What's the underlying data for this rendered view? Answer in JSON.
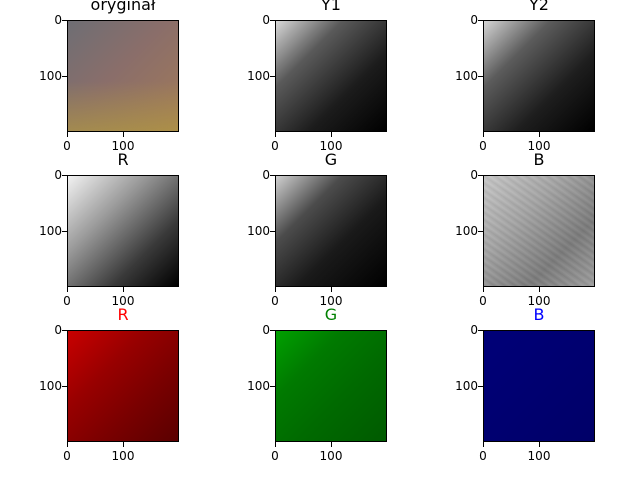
{
  "panels": [
    {
      "title": "oryginał",
      "title_color": "#000000",
      "image": "original-composite"
    },
    {
      "title": "Y1",
      "title_color": "#000000",
      "image": "luminance-grayscale"
    },
    {
      "title": "Y2",
      "title_color": "#000000",
      "image": "luminance-grayscale"
    },
    {
      "title": "R",
      "title_color": "#000000",
      "image": "red-channel-grayscale"
    },
    {
      "title": "G",
      "title_color": "#000000",
      "image": "green-channel-grayscale"
    },
    {
      "title": "B",
      "title_color": "#000000",
      "image": "blue-channel-grayscale-noisy"
    },
    {
      "title": "R",
      "title_color": "#ff0000",
      "image": "red-channel-tinted"
    },
    {
      "title": "G",
      "title_color": "#008000",
      "image": "green-channel-tinted"
    },
    {
      "title": "B",
      "title_color": "#0000ff",
      "image": "blue-channel-tinted"
    }
  ],
  "axis": {
    "y_ticks": [
      "0",
      "100"
    ],
    "x_ticks": [
      "0",
      "100"
    ]
  }
}
